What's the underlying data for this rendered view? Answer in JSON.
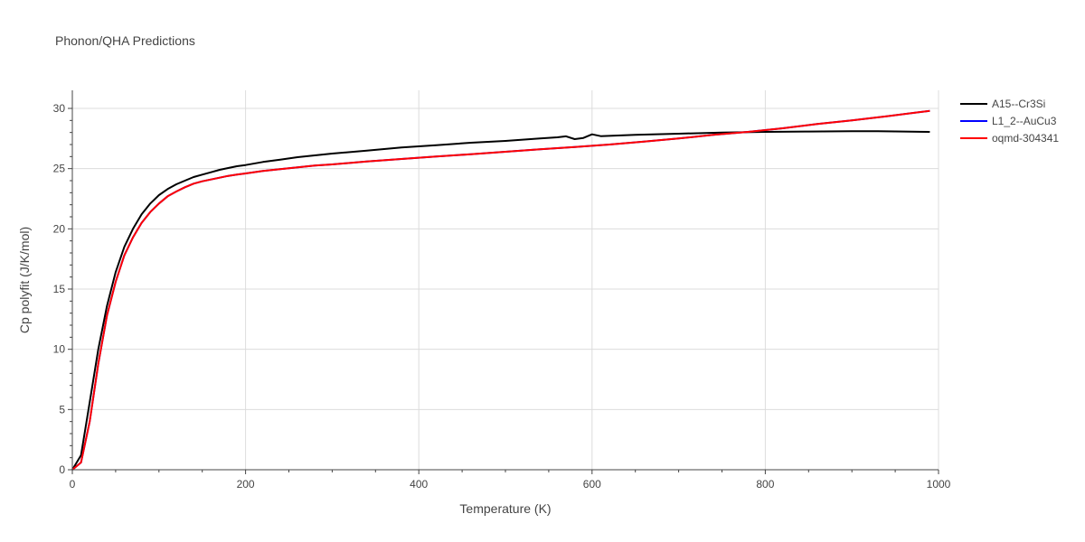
{
  "chart_data": {
    "type": "line",
    "title": "Phonon/QHA Predictions",
    "xlabel": "Temperature (K)",
    "ylabel": "Cp polyfit (J/K/mol)",
    "xlim": [
      0,
      1000
    ],
    "ylim": [
      0,
      31.5
    ],
    "xticks": [
      0,
      200,
      400,
      600,
      800,
      1000
    ],
    "yticks": [
      0,
      5,
      10,
      15,
      20,
      25,
      30
    ],
    "grid": true,
    "legend_position": "top-right",
    "series": [
      {
        "name": "A15--Cr3Si",
        "color": "#000000",
        "x": [
          0,
          10,
          20,
          30,
          40,
          50,
          60,
          70,
          80,
          90,
          100,
          110,
          120,
          130,
          140,
          150,
          160,
          170,
          180,
          190,
          200,
          220,
          240,
          260,
          280,
          300,
          340,
          380,
          420,
          460,
          500,
          540,
          560,
          570,
          580,
          590,
          600,
          610,
          650,
          700,
          750,
          800,
          850,
          900,
          930,
          960,
          990
        ],
        "y": [
          0,
          1.2,
          5.6,
          10.0,
          13.6,
          16.4,
          18.5,
          20.0,
          21.2,
          22.1,
          22.8,
          23.3,
          23.7,
          24.0,
          24.3,
          24.5,
          24.7,
          24.9,
          25.05,
          25.2,
          25.3,
          25.55,
          25.75,
          25.95,
          26.1,
          26.25,
          26.5,
          26.75,
          26.95,
          27.15,
          27.3,
          27.5,
          27.6,
          27.68,
          27.45,
          27.55,
          27.85,
          27.7,
          27.8,
          27.9,
          28.0,
          28.05,
          28.08,
          28.1,
          28.1,
          28.08,
          28.05
        ]
      },
      {
        "name": "L1_2--AuCu3",
        "color": "#0000ff",
        "x": [
          0,
          10,
          20,
          30,
          40,
          50,
          60,
          70,
          80,
          90,
          100,
          110,
          120,
          130,
          140,
          150,
          160,
          170,
          180,
          190,
          200,
          220,
          240,
          260,
          280,
          300,
          340,
          380,
          420,
          460,
          500,
          540,
          580,
          620,
          660,
          700,
          740,
          780,
          820,
          860,
          900,
          940,
          990
        ],
        "y": [
          0,
          0.6,
          4.0,
          8.8,
          12.8,
          15.6,
          17.8,
          19.3,
          20.5,
          21.4,
          22.1,
          22.7,
          23.1,
          23.45,
          23.75,
          23.95,
          24.1,
          24.25,
          24.4,
          24.5,
          24.6,
          24.8,
          24.95,
          25.1,
          25.25,
          25.35,
          25.6,
          25.8,
          26.0,
          26.2,
          26.4,
          26.6,
          26.8,
          27.0,
          27.25,
          27.5,
          27.8,
          28.05,
          28.35,
          28.7,
          29.0,
          29.35,
          29.8
        ]
      },
      {
        "name": "oqmd-304341",
        "color": "#ff0000",
        "x": [
          0,
          10,
          20,
          30,
          40,
          50,
          60,
          70,
          80,
          90,
          100,
          110,
          120,
          130,
          140,
          150,
          160,
          170,
          180,
          190,
          200,
          220,
          240,
          260,
          280,
          300,
          340,
          380,
          420,
          460,
          500,
          540,
          580,
          620,
          660,
          700,
          740,
          780,
          820,
          860,
          900,
          940,
          990
        ],
        "y": [
          0,
          0.6,
          4.0,
          8.8,
          12.8,
          15.6,
          17.8,
          19.3,
          20.5,
          21.4,
          22.1,
          22.7,
          23.1,
          23.45,
          23.75,
          23.95,
          24.1,
          24.25,
          24.4,
          24.5,
          24.6,
          24.8,
          24.95,
          25.1,
          25.25,
          25.35,
          25.6,
          25.8,
          26.0,
          26.2,
          26.4,
          26.6,
          26.8,
          27.0,
          27.25,
          27.5,
          27.8,
          28.05,
          28.35,
          28.7,
          29.0,
          29.35,
          29.8
        ]
      }
    ]
  }
}
